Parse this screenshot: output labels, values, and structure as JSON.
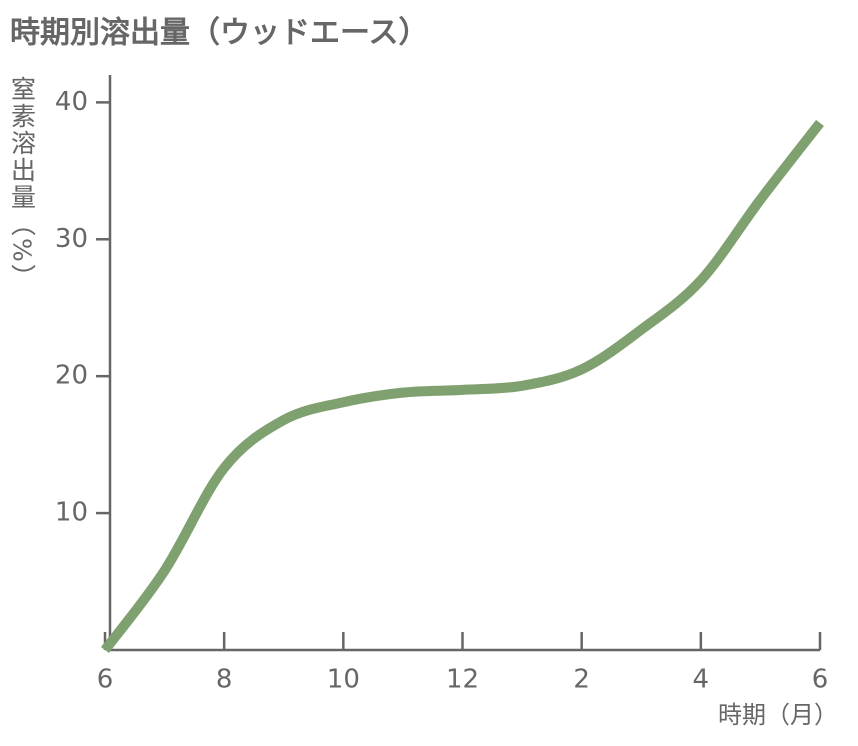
{
  "chart_data": {
    "type": "line",
    "title": "時期別溶出量（ウッドエース）",
    "y_label": "窒素溶出量（%）",
    "x_label": "時期（月）",
    "categories": [
      "6",
      null,
      "8",
      null,
      "10",
      null,
      "12",
      null,
      "2",
      null,
      "4",
      null,
      "6"
    ],
    "series": [
      {
        "name": "ウッドエース",
        "color": "#7fa06f",
        "values": [
          0,
          5.8,
          13.3,
          16.8,
          18.1,
          18.8,
          19.0,
          19.3,
          20.5,
          23.4,
          27.0,
          32.9,
          38.5
        ]
      }
    ],
    "ylim": [
      0,
      42
    ],
    "yticks": [
      10,
      20,
      30,
      40
    ]
  }
}
